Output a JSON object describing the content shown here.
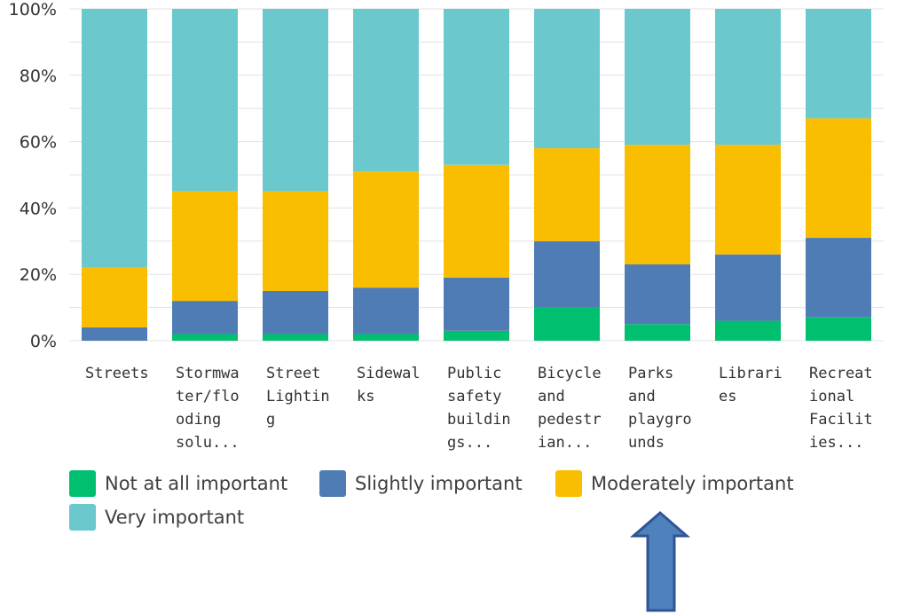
{
  "chart_data": {
    "type": "bar",
    "stacked": true,
    "categories": [
      [
        "Streets"
      ],
      [
        "Stormwa",
        "ter/flo",
        "oding",
        "solu..."
      ],
      [
        "Street",
        "Lightin",
        "g"
      ],
      [
        "Sidewal",
        "ks"
      ],
      [
        "Public",
        "safety",
        "buildin",
        "gs..."
      ],
      [
        "Bicycle",
        "and",
        "pedestr",
        "ian..."
      ],
      [
        "Parks",
        "and",
        "playgro",
        "unds"
      ],
      [
        "Librari",
        "es"
      ],
      [
        "Recreat",
        "ional",
        "Facilit",
        "ies..."
      ]
    ],
    "series": [
      {
        "name": "Not at all important",
        "color": "#00bf6f",
        "values": [
          0,
          2,
          2,
          2,
          3,
          10,
          5,
          6,
          7
        ]
      },
      {
        "name": "Slightly important",
        "color": "#507cb6",
        "values": [
          4,
          10,
          13,
          14,
          16,
          20,
          18,
          20,
          24
        ]
      },
      {
        "name": "Moderately important",
        "color": "#f9be00",
        "values": [
          18,
          33,
          30,
          35,
          34,
          28,
          36,
          33,
          36
        ]
      },
      {
        "name": "Very important",
        "color": "#6bc8cd",
        "values": [
          78,
          55,
          55,
          49,
          47,
          42,
          41,
          41,
          33
        ]
      }
    ],
    "yticks": [
      "0%",
      "20%",
      "40%",
      "60%",
      "80%",
      "100%"
    ],
    "ylim": [
      0,
      100
    ],
    "legend_position": "bottom",
    "grid": true
  },
  "annotation": {
    "type": "arrow",
    "direction": "up",
    "color": "#4f81bd",
    "points_to": "Parks and playgrounds"
  }
}
